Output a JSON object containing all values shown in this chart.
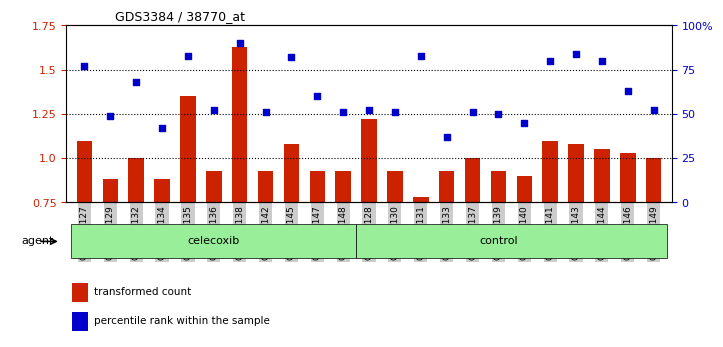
{
  "title": "GDS3384 / 38770_at",
  "samples": [
    "GSM283127",
    "GSM283129",
    "GSM283132",
    "GSM283134",
    "GSM283135",
    "GSM283136",
    "GSM283138",
    "GSM283142",
    "GSM283145",
    "GSM283147",
    "GSM283148",
    "GSM283128",
    "GSM283130",
    "GSM283131",
    "GSM283133",
    "GSM283137",
    "GSM283139",
    "GSM283140",
    "GSM283141",
    "GSM283143",
    "GSM283144",
    "GSM283146",
    "GSM283149"
  ],
  "red_bars": [
    1.1,
    0.88,
    1.0,
    0.88,
    1.35,
    0.93,
    1.63,
    0.93,
    1.08,
    0.93,
    0.93,
    1.22,
    0.93,
    0.78,
    0.93,
    1.0,
    0.93,
    0.9,
    1.1,
    1.08,
    1.05,
    1.03,
    1.0
  ],
  "blue_squares": [
    1.52,
    1.24,
    1.43,
    1.17,
    1.58,
    1.27,
    1.65,
    1.26,
    1.57,
    1.35,
    1.26,
    1.27,
    1.26,
    1.58,
    1.12,
    1.26,
    1.25,
    1.2,
    1.55,
    1.59,
    1.55,
    1.38,
    1.27
  ],
  "group1_label": "celecoxib",
  "group1_count": 11,
  "group2_label": "control",
  "group2_count": 12,
  "agent_label": "agent",
  "ylim_left": [
    0.75,
    1.75
  ],
  "yticks_left": [
    0.75,
    1.0,
    1.25,
    1.5,
    1.75
  ],
  "ylim_right": [
    0,
    100
  ],
  "yticks_right": [
    0,
    25,
    50,
    75,
    100
  ],
  "bar_color": "#cc2200",
  "square_color": "#0000cc",
  "bar_bottom": 0.75,
  "hlines": [
    1.0,
    1.25,
    1.5
  ],
  "title_color": "#000000",
  "left_tick_color": "#cc2200",
  "right_tick_color": "#0000cc",
  "background_color": "#ffffff",
  "plot_bg_color": "#ffffff",
  "agent_box_color": "#99ee99",
  "xlabel_area_color": "#cccccc"
}
